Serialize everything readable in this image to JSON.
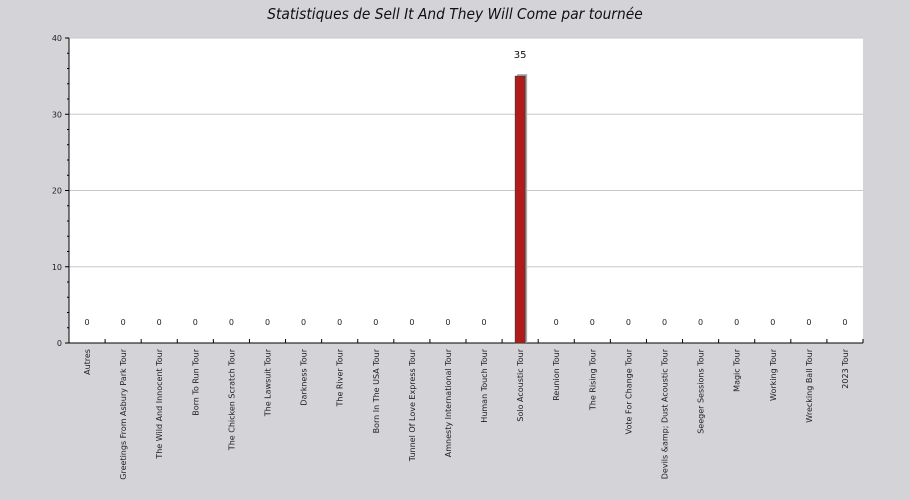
{
  "chart_data": {
    "type": "bar",
    "title": "Statistiques de Sell It And They Will Come par tournée",
    "xlabel": "",
    "ylabel": "",
    "ylim": [
      0,
      40
    ],
    "yticks": [
      0,
      10,
      20,
      30,
      40
    ],
    "grid": true,
    "categories": [
      "Autres",
      "Greetings From Asbury Park Tour",
      "The Wild And Innocent Tour",
      "Born To Run Tour",
      "The Chicken Scratch Tour",
      "The Lawsuit Tour",
      "Darkness Tour",
      "The River Tour",
      "Born In The USA Tour",
      "Tunnel Of Love Express Tour",
      "Amnesty International Tour",
      "Human Touch Tour",
      "Solo Acoustic Tour",
      "Reunion Tour",
      "The Rising Tour",
      "Vote For Change Tour",
      "Devils &amp; Dust Acoustic Tour",
      "Seeger Sessions Tour",
      "Magic Tour",
      "Working Tour",
      "Wrecking Ball Tour",
      "2023 Tour"
    ],
    "values": [
      0,
      0,
      0,
      0,
      0,
      0,
      0,
      0,
      0,
      0,
      0,
      0,
      35,
      0,
      0,
      0,
      0,
      0,
      0,
      0,
      0,
      0
    ],
    "data_labels": [
      "0",
      "0",
      "0",
      "0",
      "0",
      "0",
      "0",
      "0",
      "0",
      "0",
      "0",
      "0",
      "35",
      "0",
      "0",
      "0",
      "0",
      "0",
      "0",
      "0",
      "0",
      "0"
    ],
    "colors": {
      "bar": "#b01c1c",
      "bar_shadow": "#a9a9a9",
      "plot_bg": "#ffffff",
      "page_bg": "#d4d3d8",
      "grid": "#c8c8c8"
    }
  }
}
